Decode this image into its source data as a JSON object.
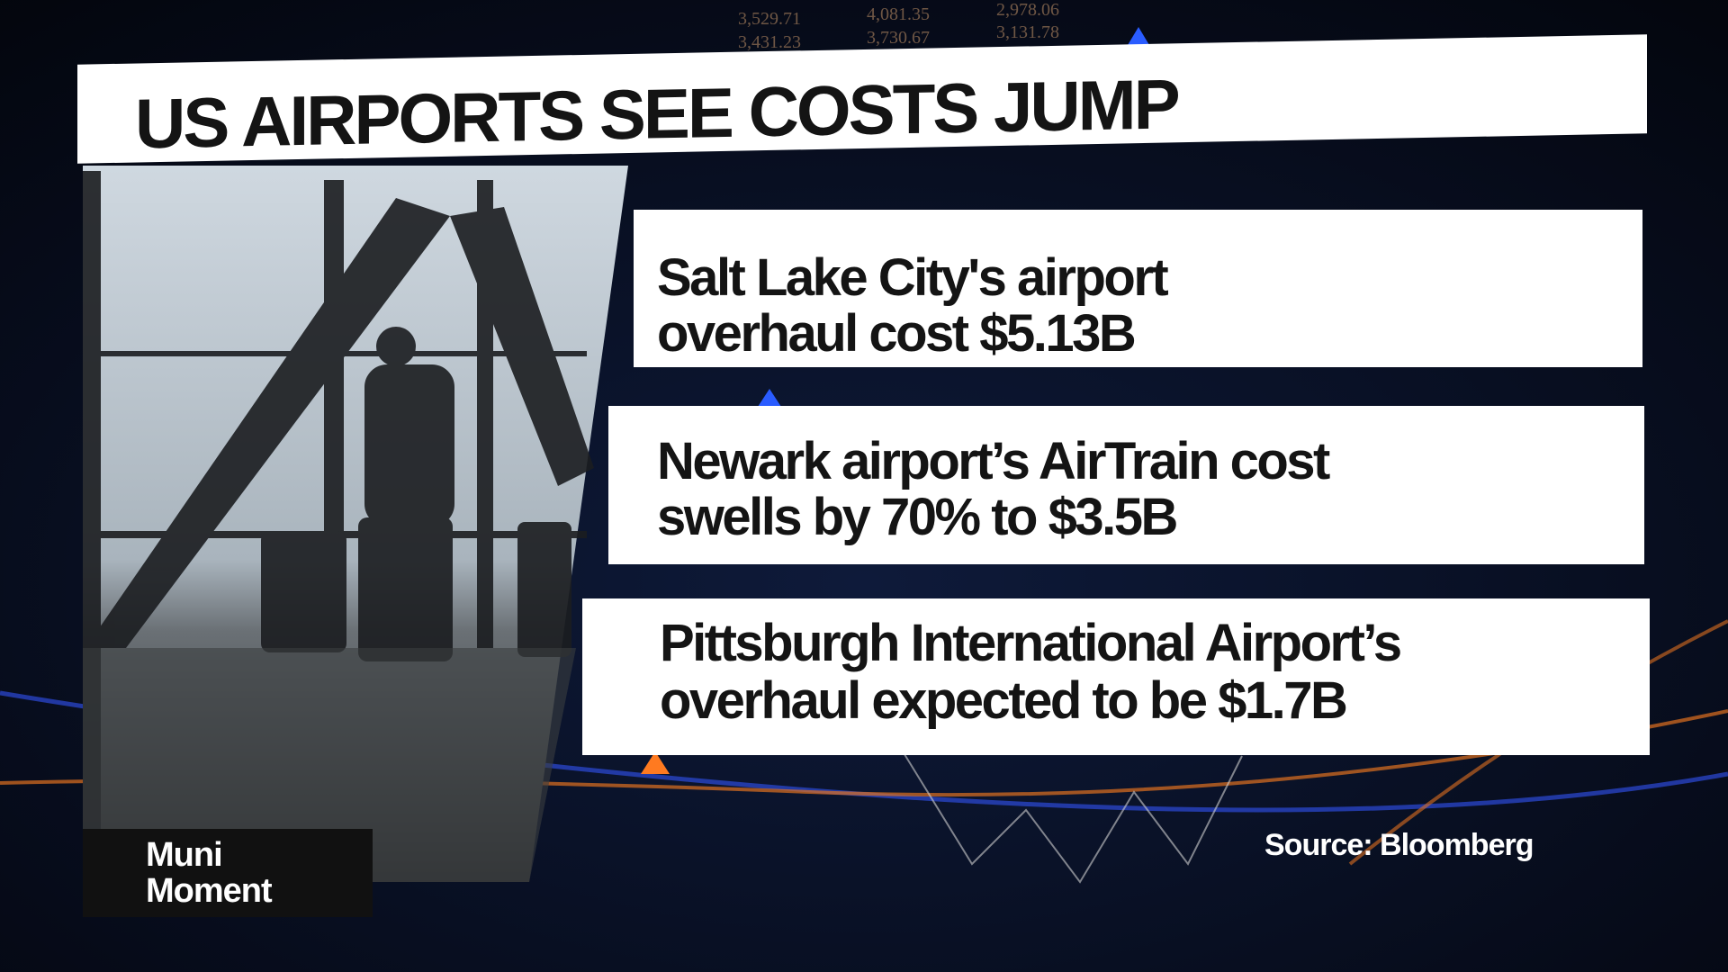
{
  "header": {
    "title": "US AIRPORTS SEE COSTS JUMP"
  },
  "ticker": [
    [
      "3,529.71",
      "4,081.35",
      "2,978.06"
    ],
    [
      "3,431.23",
      "3,730.67",
      "3,131.78"
    ]
  ],
  "items": [
    {
      "lines": [
        "Salt Lake City's airport",
        "overhaul  cost $5.13B"
      ]
    },
    {
      "lines": [
        "Newark airport’s AirTrain cost",
        "swells by 70% to $3.5B"
      ]
    },
    {
      "lines": [
        "Pittsburgh International Airport’s",
        "overhaul expected to be $1.7B"
      ]
    }
  ],
  "show": {
    "lines": [
      "Muni",
      "Moment"
    ]
  },
  "source": "Source: Bloomberg"
}
